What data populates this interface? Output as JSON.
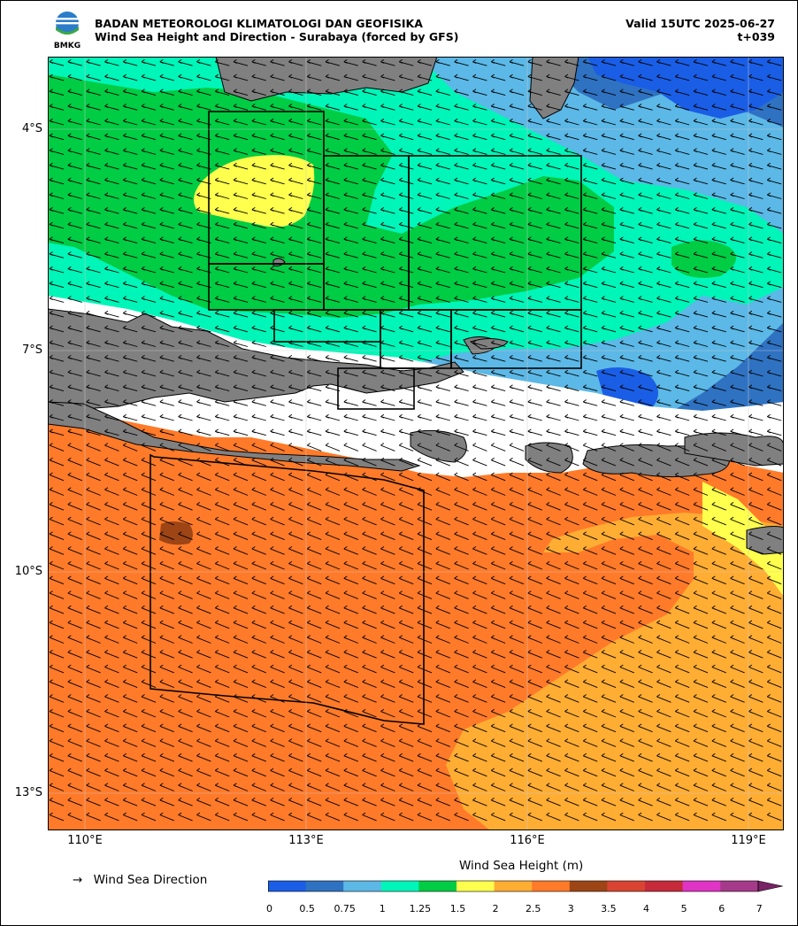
{
  "header": {
    "agency": "BADAN METEOROLOGI KLIMATOLOGI DAN GEOFISIKA",
    "title": "Wind Sea Height and Direction - Surabaya (forced by GFS)",
    "valid": "Valid 15UTC 2025-06-27",
    "lead": "t+039",
    "logo_text": "BMKG"
  },
  "axes": {
    "lat_labels": [
      "4°S",
      "7°S",
      "10°S",
      "13°S"
    ],
    "lon_labels": [
      "110°E",
      "113°E",
      "116°E",
      "119°E"
    ]
  },
  "legend": {
    "arrow_glyph": "→",
    "direction_label": "Wind Sea Direction"
  },
  "colorbar": {
    "title": "Wind Sea Height (m)",
    "ticks": [
      "0",
      "0.5",
      "0.75",
      "1",
      "1.25",
      "1.5",
      "2",
      "2.5",
      "3",
      "3.5",
      "4",
      "5",
      "6",
      "7"
    ],
    "colors": [
      "#1a5ee6",
      "#2f72c2",
      "#5cb8e6",
      "#00f5b8",
      "#00cc44",
      "#ffff4d",
      "#ffad33",
      "#ff7a29",
      "#9e4516",
      "#d94432",
      "#c72a3a",
      "#e034c6",
      "#a63a8a"
    ],
    "extend_color": "#7a2266"
  },
  "map_colors": {
    "land": "#808080",
    "no_data": "#ffffff",
    "coast": "#000000",
    "box": "#000000",
    "arrow": "#000000"
  }
}
